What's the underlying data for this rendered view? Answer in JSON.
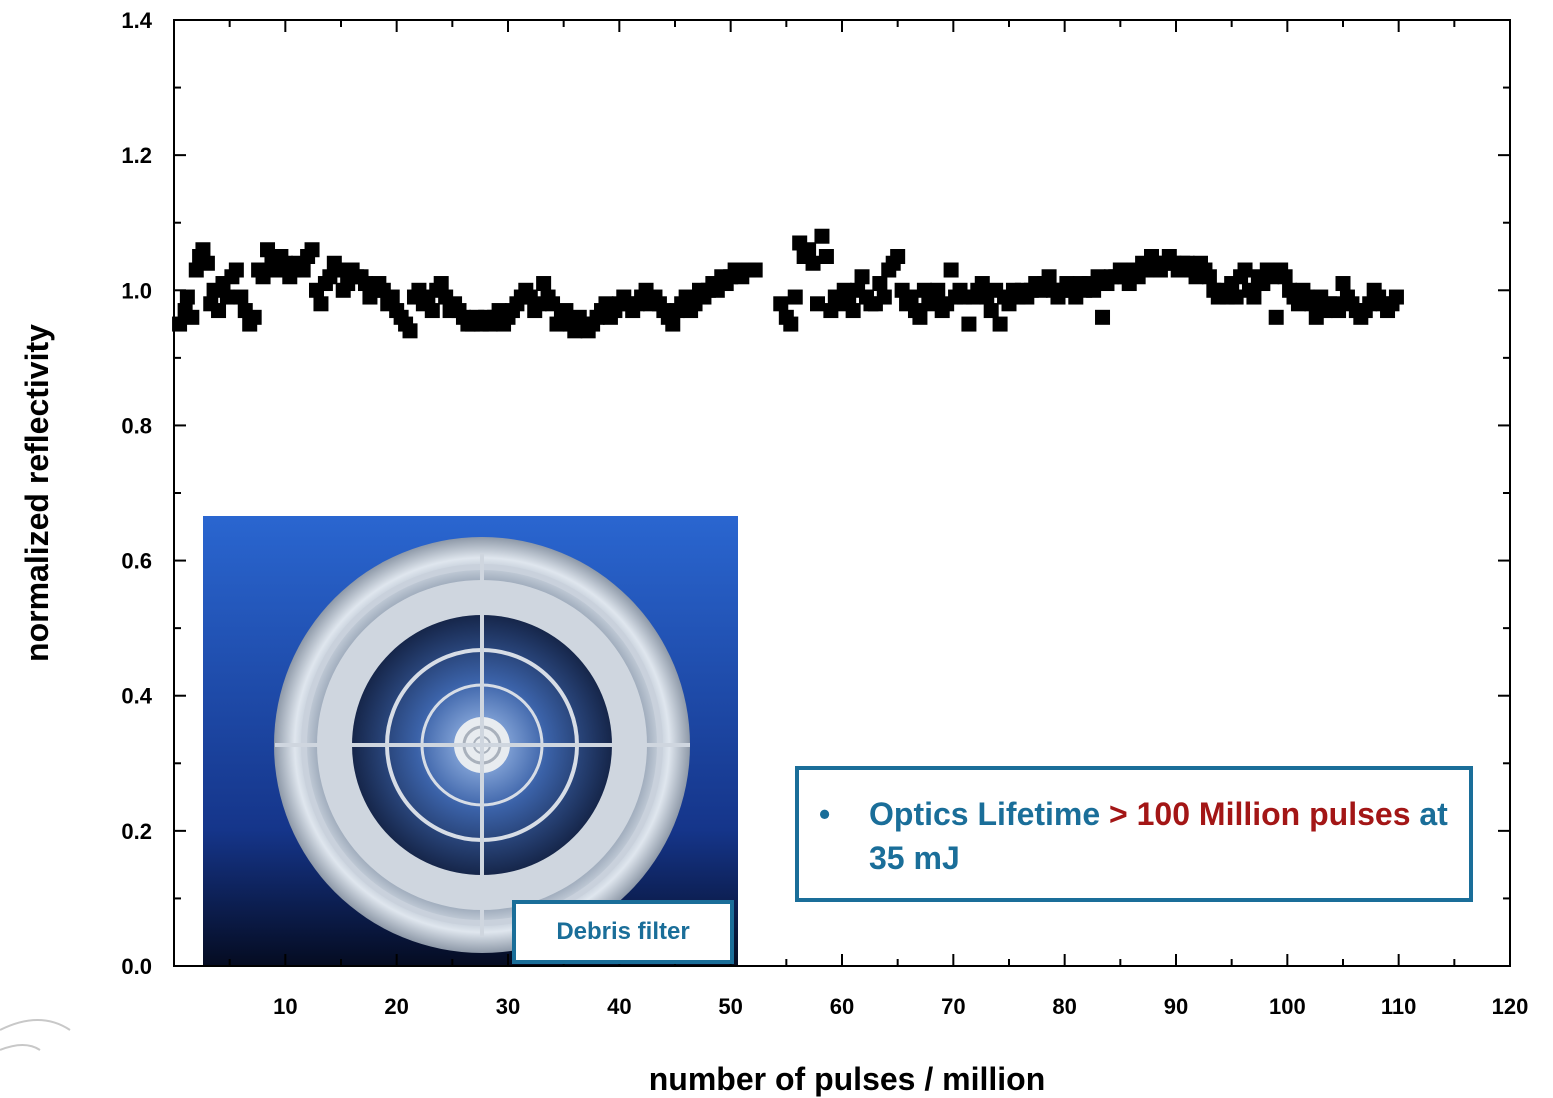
{
  "chart_data": {
    "type": "scatter",
    "xlabel": "number of pulses / million",
    "ylabel": "normalized reflectivity",
    "xlim": [
      0,
      120
    ],
    "ylim": [
      0,
      1.4
    ],
    "xticks": [
      10,
      20,
      30,
      40,
      50,
      60,
      70,
      80,
      90,
      100,
      110,
      120
    ],
    "yticks": [
      "0.0",
      "0.2",
      "0.4",
      "0.6",
      "0.8",
      "1.0",
      "1.2",
      "1.4"
    ],
    "marker": "square",
    "marker_color": "#000000",
    "points": [
      [
        0.5,
        0.95
      ],
      [
        1.0,
        0.97
      ],
      [
        1.2,
        0.99
      ],
      [
        1.6,
        0.96
      ],
      [
        2.0,
        1.03
      ],
      [
        2.3,
        1.05
      ],
      [
        2.6,
        1.06
      ],
      [
        3.0,
        1.04
      ],
      [
        3.3,
        0.98
      ],
      [
        3.6,
        1.0
      ],
      [
        4.0,
        0.97
      ],
      [
        4.4,
        1.01
      ],
      [
        4.8,
        0.99
      ],
      [
        5.2,
        1.02
      ],
      [
        5.6,
        1.03
      ],
      [
        6.0,
        0.99
      ],
      [
        6.4,
        0.97
      ],
      [
        6.8,
        0.95
      ],
      [
        7.2,
        0.96
      ],
      [
        7.6,
        1.03
      ],
      [
        8.0,
        1.02
      ],
      [
        8.4,
        1.06
      ],
      [
        8.8,
        1.04
      ],
      [
        9.2,
        1.03
      ],
      [
        9.6,
        1.05
      ],
      [
        10.0,
        1.04
      ],
      [
        10.4,
        1.02
      ],
      [
        10.8,
        1.03
      ],
      [
        11.2,
        1.04
      ],
      [
        11.6,
        1.03
      ],
      [
        12.0,
        1.05
      ],
      [
        12.4,
        1.06
      ],
      [
        12.8,
        1.0
      ],
      [
        13.2,
        0.98
      ],
      [
        13.6,
        1.01
      ],
      [
        14.0,
        1.02
      ],
      [
        14.4,
        1.04
      ],
      [
        14.8,
        1.03
      ],
      [
        15.2,
        1.0
      ],
      [
        15.6,
        1.01
      ],
      [
        16.0,
        1.03
      ],
      [
        16.4,
        1.02
      ],
      [
        16.8,
        1.02
      ],
      [
        17.2,
        1.01
      ],
      [
        17.6,
        0.99
      ],
      [
        18.0,
        1.0
      ],
      [
        18.4,
        1.01
      ],
      [
        18.8,
        1.0
      ],
      [
        19.2,
        0.98
      ],
      [
        19.6,
        0.99
      ],
      [
        20.0,
        0.97
      ],
      [
        20.4,
        0.96
      ],
      [
        20.8,
        0.95
      ],
      [
        21.2,
        0.94
      ],
      [
        21.6,
        0.99
      ],
      [
        22.0,
        1.0
      ],
      [
        22.4,
        0.98
      ],
      [
        22.8,
        0.99
      ],
      [
        23.2,
        0.97
      ],
      [
        23.6,
        1.0
      ],
      [
        24.0,
        1.01
      ],
      [
        24.4,
        0.99
      ],
      [
        24.8,
        0.97
      ],
      [
        25.2,
        0.98
      ],
      [
        25.6,
        0.97
      ],
      [
        26.0,
        0.96
      ],
      [
        26.4,
        0.95
      ],
      [
        26.8,
        0.95
      ],
      [
        27.2,
        0.96
      ],
      [
        27.6,
        0.95
      ],
      [
        28.0,
        0.96
      ],
      [
        28.4,
        0.95
      ],
      [
        28.8,
        0.96
      ],
      [
        29.2,
        0.97
      ],
      [
        29.6,
        0.95
      ],
      [
        30.0,
        0.96
      ],
      [
        30.4,
        0.97
      ],
      [
        30.8,
        0.98
      ],
      [
        31.2,
        0.99
      ],
      [
        31.6,
        1.0
      ],
      [
        32.0,
        0.99
      ],
      [
        32.4,
        0.97
      ],
      [
        32.8,
        0.98
      ],
      [
        33.2,
        1.01
      ],
      [
        33.6,
        0.99
      ],
      [
        34.0,
        0.98
      ],
      [
        34.4,
        0.95
      ],
      [
        34.8,
        0.96
      ],
      [
        35.2,
        0.97
      ],
      [
        35.6,
        0.95
      ],
      [
        36.0,
        0.94
      ],
      [
        36.4,
        0.96
      ],
      [
        36.8,
        0.95
      ],
      [
        37.2,
        0.94
      ],
      [
        37.6,
        0.95
      ],
      [
        38.0,
        0.96
      ],
      [
        38.4,
        0.97
      ],
      [
        38.8,
        0.98
      ],
      [
        39.2,
        0.96
      ],
      [
        39.6,
        0.97
      ],
      [
        40.0,
        0.98
      ],
      [
        40.4,
        0.99
      ],
      [
        40.8,
        0.98
      ],
      [
        41.2,
        0.97
      ],
      [
        41.6,
        0.98
      ],
      [
        42.0,
        0.99
      ],
      [
        42.4,
        1.0
      ],
      [
        42.8,
        0.98
      ],
      [
        43.2,
        0.99
      ],
      [
        43.6,
        0.98
      ],
      [
        44.0,
        0.97
      ],
      [
        44.4,
        0.96
      ],
      [
        44.8,
        0.95
      ],
      [
        45.2,
        0.97
      ],
      [
        45.6,
        0.98
      ],
      [
        46.0,
        0.99
      ],
      [
        46.4,
        0.97
      ],
      [
        46.8,
        0.98
      ],
      [
        47.2,
        1.0
      ],
      [
        47.6,
        0.99
      ],
      [
        48.0,
        1.0
      ],
      [
        48.4,
        1.01
      ],
      [
        48.8,
        1.0
      ],
      [
        49.2,
        1.02
      ],
      [
        49.6,
        1.01
      ],
      [
        50.0,
        1.02
      ],
      [
        50.4,
        1.03
      ],
      [
        51.0,
        1.02
      ],
      [
        51.6,
        1.03
      ],
      [
        52.2,
        1.03
      ],
      [
        54.5,
        0.98
      ],
      [
        55.0,
        0.96
      ],
      [
        55.4,
        0.95
      ],
      [
        55.8,
        0.99
      ],
      [
        56.2,
        1.07
      ],
      [
        56.6,
        1.05
      ],
      [
        57.0,
        1.06
      ],
      [
        57.4,
        1.04
      ],
      [
        57.8,
        0.98
      ],
      [
        58.2,
        1.08
      ],
      [
        58.6,
        1.05
      ],
      [
        59.0,
        0.97
      ],
      [
        59.4,
        0.99
      ],
      [
        59.8,
        0.98
      ],
      [
        60.2,
        1.0
      ],
      [
        60.6,
        0.99
      ],
      [
        61.0,
        0.97
      ],
      [
        61.4,
        1.0
      ],
      [
        61.8,
        1.02
      ],
      [
        62.2,
        0.99
      ],
      [
        62.6,
        0.98
      ],
      [
        63.0,
        0.98
      ],
      [
        63.4,
        1.01
      ],
      [
        63.8,
        0.99
      ],
      [
        64.2,
        1.03
      ],
      [
        64.6,
        1.04
      ],
      [
        65.0,
        1.05
      ],
      [
        65.4,
        1.0
      ],
      [
        65.8,
        0.98
      ],
      [
        66.2,
        0.99
      ],
      [
        66.6,
        0.97
      ],
      [
        67.0,
        0.96
      ],
      [
        67.4,
        1.0
      ],
      [
        67.8,
        0.98
      ],
      [
        68.2,
        0.99
      ],
      [
        68.6,
        1.0
      ],
      [
        69.0,
        0.97
      ],
      [
        69.4,
        0.98
      ],
      [
        69.8,
        1.03
      ],
      [
        70.2,
        0.99
      ],
      [
        70.6,
        1.0
      ],
      [
        71.0,
        0.99
      ],
      [
        71.4,
        0.95
      ],
      [
        71.8,
        0.99
      ],
      [
        72.2,
        1.0
      ],
      [
        72.6,
        1.01
      ],
      [
        73.0,
        0.99
      ],
      [
        73.4,
        0.97
      ],
      [
        73.8,
        1.0
      ],
      [
        74.2,
        0.95
      ],
      [
        74.6,
        0.99
      ],
      [
        75.0,
        0.98
      ],
      [
        75.4,
        1.0
      ],
      [
        75.8,
        0.99
      ],
      [
        76.2,
        1.0
      ],
      [
        76.6,
        0.99
      ],
      [
        77.0,
        1.0
      ],
      [
        77.4,
        1.01
      ],
      [
        77.8,
        1.0
      ],
      [
        78.2,
        1.01
      ],
      [
        78.6,
        1.02
      ],
      [
        79.0,
        1.0
      ],
      [
        79.4,
        0.99
      ],
      [
        79.8,
        1.0
      ],
      [
        80.2,
        1.01
      ],
      [
        80.6,
        1.0
      ],
      [
        81.0,
        0.99
      ],
      [
        81.4,
        1.01
      ],
      [
        81.8,
        1.0
      ],
      [
        82.2,
        1.01
      ],
      [
        82.6,
        1.0
      ],
      [
        83.0,
        1.02
      ],
      [
        83.4,
        0.96
      ],
      [
        83.8,
        1.01
      ],
      [
        84.2,
        1.02
      ],
      [
        84.6,
        1.02
      ],
      [
        85.0,
        1.03
      ],
      [
        85.4,
        1.02
      ],
      [
        85.8,
        1.01
      ],
      [
        86.2,
        1.03
      ],
      [
        86.6,
        1.02
      ],
      [
        87.0,
        1.04
      ],
      [
        87.4,
        1.03
      ],
      [
        87.8,
        1.05
      ],
      [
        88.2,
        1.04
      ],
      [
        88.6,
        1.03
      ],
      [
        89.0,
        1.04
      ],
      [
        89.4,
        1.05
      ],
      [
        89.8,
        1.04
      ],
      [
        90.2,
        1.03
      ],
      [
        90.6,
        1.04
      ],
      [
        91.0,
        1.04
      ],
      [
        91.4,
        1.03
      ],
      [
        91.8,
        1.02
      ],
      [
        92.2,
        1.04
      ],
      [
        92.6,
        1.03
      ],
      [
        93.0,
        1.02
      ],
      [
        93.4,
        1.0
      ],
      [
        93.8,
        0.99
      ],
      [
        94.2,
        1.0
      ],
      [
        94.6,
        0.99
      ],
      [
        95.0,
        1.01
      ],
      [
        95.4,
        0.99
      ],
      [
        95.8,
        1.02
      ],
      [
        96.2,
        1.03
      ],
      [
        96.6,
        1.0
      ],
      [
        97.0,
        0.99
      ],
      [
        97.4,
        1.02
      ],
      [
        97.8,
        1.01
      ],
      [
        98.2,
        1.03
      ],
      [
        98.6,
        1.02
      ],
      [
        99.0,
        0.96
      ],
      [
        99.4,
        1.03
      ],
      [
        99.8,
        1.02
      ],
      [
        100.2,
        1.0
      ],
      [
        100.6,
        0.99
      ],
      [
        101.0,
        0.98
      ],
      [
        101.4,
        1.0
      ],
      [
        101.8,
        0.99
      ],
      [
        102.2,
        0.98
      ],
      [
        102.6,
        0.96
      ],
      [
        103.0,
        0.99
      ],
      [
        103.4,
        0.97
      ],
      [
        103.8,
        0.98
      ],
      [
        104.2,
        0.98
      ],
      [
        104.6,
        0.97
      ],
      [
        105.0,
        1.01
      ],
      [
        105.4,
        0.99
      ],
      [
        105.8,
        0.98
      ],
      [
        106.2,
        0.97
      ],
      [
        106.6,
        0.96
      ],
      [
        107.0,
        0.97
      ],
      [
        107.4,
        0.98
      ],
      [
        107.8,
        1.0
      ],
      [
        108.2,
        0.99
      ],
      [
        108.6,
        0.98
      ],
      [
        109.0,
        0.97
      ],
      [
        109.4,
        0.98
      ],
      [
        109.8,
        0.99
      ]
    ]
  },
  "inset": {
    "badge_label": "Debris filter",
    "colors": {
      "background_top": "#2a62c8",
      "background_bottom": "#0a1a44"
    }
  },
  "callout": {
    "bullet": "•",
    "part1": "Optics Lifetime",
    "part2": "> 100 Million pulses",
    "part3": "at 35 mJ",
    "border_color": "#1a6e99",
    "highlight_color": "#a31616"
  }
}
